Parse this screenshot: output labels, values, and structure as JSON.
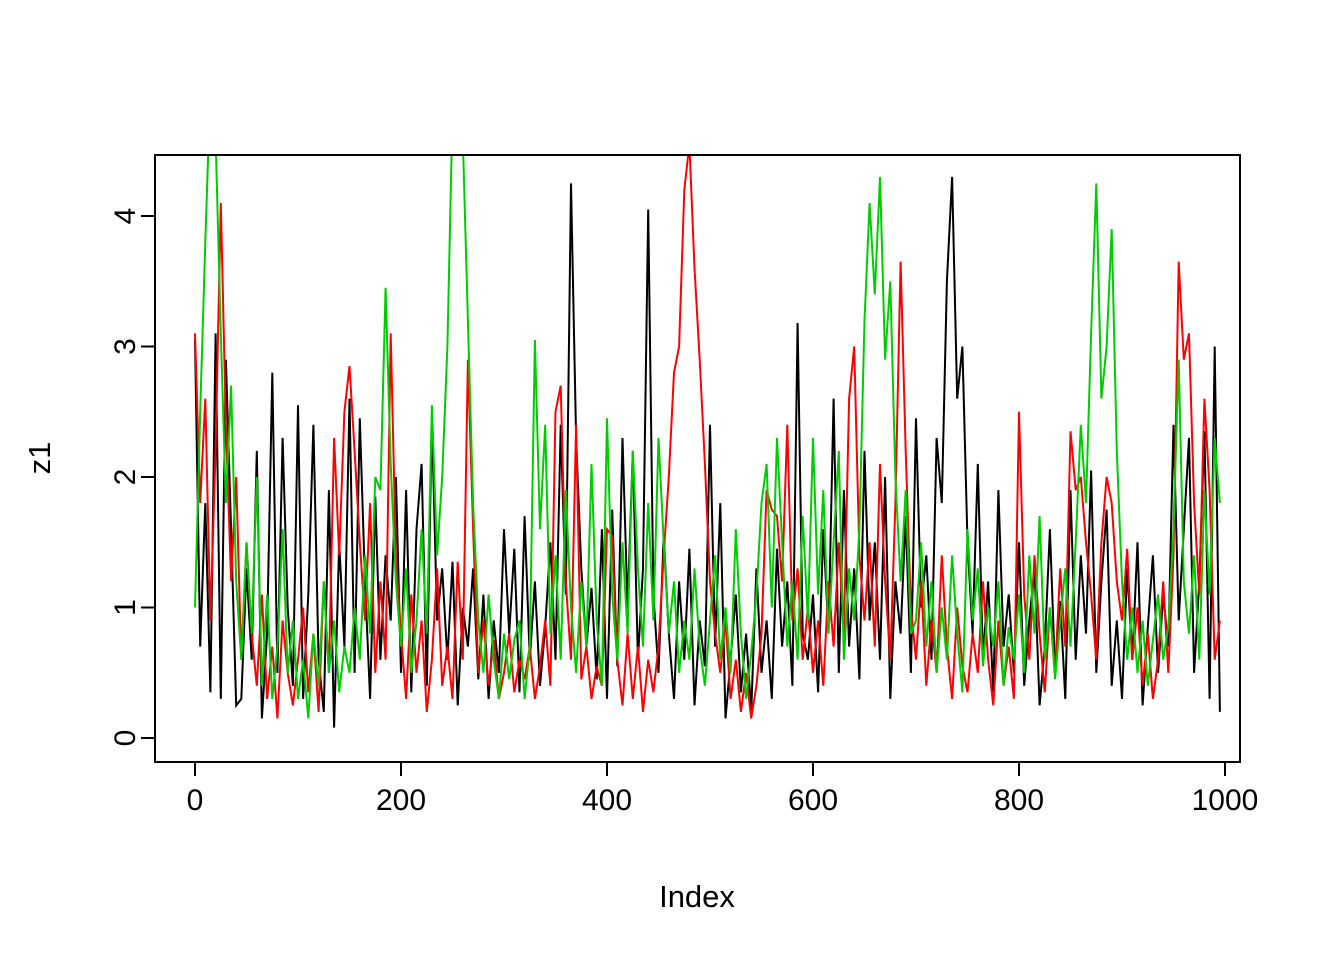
{
  "chart_data": {
    "type": "line",
    "title": "",
    "xlabel": "Index",
    "ylabel": "z1",
    "xlim": [
      0,
      1000
    ],
    "ylim": [
      0,
      4.5
    ],
    "x_ticks": [
      0,
      200,
      400,
      600,
      800,
      1000
    ],
    "y_ticks": [
      0,
      1,
      2,
      3,
      4
    ],
    "grid": false,
    "legend": "none",
    "x_start": 0,
    "x_step": 5,
    "frame_color": "#000000",
    "series": [
      {
        "name": "z1-black",
        "color": "#000000",
        "values": [
          3.05,
          0.7,
          1.8,
          0.35,
          3.1,
          0.3,
          2.9,
          1.6,
          0.25,
          0.3,
          1.3,
          0.6,
          2.2,
          0.15,
          0.8,
          2.8,
          0.5,
          2.3,
          1.0,
          0.4,
          2.55,
          0.3,
          1.1,
          2.4,
          0.6,
          0.2,
          1.9,
          0.08,
          1.5,
          0.7,
          2.6,
          0.5,
          2.45,
          1.2,
          0.3,
          1.85,
          0.6,
          1.4,
          0.9,
          2.0,
          0.5,
          1.9,
          0.35,
          1.6,
          2.1,
          0.4,
          2.45,
          0.9,
          1.3,
          0.6,
          1.35,
          0.25,
          1.0,
          0.7,
          1.3,
          0.45,
          1.1,
          0.3,
          0.9,
          0.5,
          1.6,
          0.8,
          1.45,
          0.35,
          1.7,
          0.6,
          1.2,
          0.4,
          0.85,
          1.5,
          0.6,
          2.4,
          1.1,
          4.25,
          2.3,
          1.3,
          0.7,
          1.15,
          0.45,
          1.6,
          0.3,
          1.75,
          0.55,
          2.3,
          1.0,
          2.2,
          0.6,
          1.3,
          4.05,
          1.1,
          0.5,
          1.55,
          0.8,
          0.3,
          1.2,
          0.6,
          1.45,
          0.25,
          0.9,
          0.55,
          2.4,
          0.7,
          1.8,
          0.15,
          0.6,
          1.1,
          0.35,
          0.8,
          0.2,
          1.3,
          0.5,
          0.9,
          0.3,
          1.45,
          0.7,
          1.2,
          0.4,
          3.18,
          0.8,
          0.6,
          1.1,
          0.35,
          1.6,
          0.8,
          2.6,
          0.5,
          1.9,
          0.7,
          1.3,
          0.45,
          2.2,
          0.9,
          1.5,
          0.6,
          2.0,
          0.3,
          1.2,
          0.8,
          1.7,
          0.5,
          2.45,
          1.0,
          1.4,
          0.6,
          2.3,
          1.8,
          3.5,
          4.3,
          2.6,
          3.0,
          1.5,
          0.8,
          2.1,
          0.6,
          1.2,
          0.35,
          1.9,
          0.7,
          1.1,
          0.5,
          1.5,
          0.4,
          0.9,
          1.3,
          0.25,
          0.7,
          1.6,
          0.5,
          1.05,
          0.3,
          1.9,
          0.6,
          1.4,
          0.8,
          2.05,
          0.5,
          1.2,
          1.75,
          0.4,
          0.9,
          0.3,
          1.3,
          0.6,
          1.5,
          0.25,
          0.85,
          1.4,
          0.5,
          1.1,
          0.7,
          2.4,
          0.9,
          1.6,
          2.3,
          0.5,
          1.2,
          2.35,
          0.3,
          3.0,
          0.2
        ]
      },
      {
        "name": "z1-red",
        "color": "#FF0000",
        "values": [
          3.1,
          1.8,
          2.6,
          0.9,
          2.2,
          4.1,
          2.4,
          1.2,
          2.0,
          0.6,
          1.5,
          0.8,
          0.4,
          1.1,
          0.3,
          0.7,
          0.15,
          0.9,
          0.5,
          0.25,
          0.6,
          1.0,
          0.35,
          0.8,
          0.2,
          1.2,
          0.5,
          2.3,
          1.4,
          2.5,
          2.85,
          2.2,
          1.5,
          0.9,
          1.8,
          0.5,
          1.2,
          0.6,
          3.1,
          1.4,
          0.8,
          0.3,
          1.1,
          0.5,
          0.9,
          0.2,
          0.6,
          1.3,
          0.4,
          0.7,
          0.3,
          1.35,
          0.6,
          2.9,
          1.6,
          0.5,
          0.9,
          0.4,
          0.75,
          0.3,
          0.5,
          0.8,
          0.35,
          0.6,
          0.45,
          0.7,
          0.3,
          0.55,
          0.9,
          0.4,
          2.5,
          2.7,
          1.2,
          0.6,
          2.4,
          0.45,
          0.7,
          0.3,
          0.55,
          0.4,
          1.6,
          1.55,
          0.6,
          0.25,
          0.8,
          0.3,
          0.7,
          0.2,
          0.6,
          0.35,
          0.7,
          1.4,
          2.0,
          2.8,
          3.0,
          4.2,
          4.55,
          3.6,
          2.9,
          2.1,
          1.2,
          0.8,
          0.5,
          0.9,
          0.3,
          0.6,
          0.2,
          0.5,
          0.15,
          0.4,
          0.8,
          1.9,
          1.75,
          1.7,
          1.2,
          2.4,
          0.9,
          1.3,
          0.6,
          1.0,
          0.5,
          0.9,
          0.4,
          1.2,
          0.7,
          1.5,
          0.8,
          2.6,
          3.0,
          1.4,
          0.9,
          1.5,
          0.7,
          2.1,
          1.2,
          0.6,
          1.8,
          3.65,
          2.2,
          1.0,
          0.6,
          1.2,
          0.4,
          0.9,
          0.5,
          1.4,
          0.7,
          0.3,
          1.0,
          0.55,
          0.35,
          0.8,
          0.5,
          1.2,
          0.6,
          0.25,
          0.9,
          0.4,
          0.7,
          0.3,
          2.5,
          1.1,
          0.6,
          1.4,
          0.8,
          0.35,
          1.0,
          0.5,
          1.3,
          0.7,
          2.35,
          1.9,
          2.0,
          1.5,
          1.1,
          0.6,
          1.5,
          2.0,
          1.8,
          1.2,
          0.9,
          1.45,
          0.6,
          1.0,
          0.4,
          0.8,
          0.3,
          0.6,
          1.2,
          0.5,
          1.4,
          3.65,
          2.9,
          3.1,
          1.8,
          1.1,
          2.6,
          1.9,
          0.6,
          0.9
        ]
      },
      {
        "name": "z1-green",
        "color": "#00CD00",
        "values": [
          1.0,
          2.5,
          3.8,
          5.0,
          4.6,
          3.1,
          1.8,
          2.7,
          1.2,
          0.6,
          1.5,
          0.8,
          2.0,
          0.4,
          1.1,
          0.3,
          0.7,
          1.6,
          0.5,
          0.9,
          0.3,
          0.6,
          0.15,
          0.8,
          0.4,
          1.2,
          0.5,
          0.9,
          0.35,
          0.7,
          0.5,
          1.0,
          0.6,
          1.4,
          0.8,
          2.0,
          1.9,
          3.45,
          2.1,
          1.2,
          0.7,
          1.3,
          0.5,
          0.9,
          1.6,
          0.8,
          2.55,
          1.4,
          2.0,
          3.0,
          4.8,
          5.3,
          4.6,
          3.2,
          1.8,
          0.9,
          0.5,
          1.1,
          0.6,
          0.3,
          0.8,
          0.45,
          0.75,
          0.9,
          0.3,
          0.7,
          3.05,
          1.6,
          2.4,
          0.8,
          1.4,
          0.6,
          1.9,
          1.0,
          0.5,
          1.2,
          0.7,
          2.1,
          0.9,
          0.4,
          2.45,
          1.1,
          0.6,
          1.5,
          0.8,
          2.2,
          1.3,
          0.7,
          1.8,
          0.9,
          2.3,
          1.5,
          0.8,
          1.2,
          0.5,
          0.9,
          0.6,
          1.3,
          0.7,
          0.4,
          0.9,
          1.4,
          0.6,
          1.0,
          0.5,
          1.6,
          0.8,
          0.3,
          0.65,
          1.1,
          1.8,
          2.1,
          1.0,
          2.3,
          1.5,
          0.7,
          1.2,
          0.6,
          1.7,
          0.9,
          2.3,
          1.1,
          1.9,
          0.8,
          1.5,
          2.2,
          0.6,
          1.3,
          0.9,
          1.6,
          3.2,
          4.1,
          3.4,
          4.3,
          2.9,
          3.5,
          2.0,
          1.2,
          1.9,
          0.8,
          0.9,
          1.5,
          0.7,
          1.2,
          0.5,
          1.0,
          0.6,
          1.4,
          0.8,
          0.35,
          1.6,
          0.9,
          1.3,
          0.55,
          1.0,
          0.7,
          1.2,
          0.4,
          0.85,
          0.6,
          1.1,
          0.5,
          1.4,
          0.8,
          1.7,
          0.6,
          1.0,
          0.45,
          0.9,
          1.3,
          0.7,
          1.5,
          2.4,
          1.8,
          3.1,
          4.25,
          2.6,
          3.0,
          3.9,
          2.2,
          1.2,
          0.6,
          1.0,
          0.5,
          0.9,
          0.4,
          0.75,
          1.1,
          0.6,
          0.85,
          1.6,
          2.9,
          1.2,
          0.8,
          1.4,
          0.6,
          1.9,
          1.1,
          2.3,
          1.8
        ]
      }
    ]
  }
}
